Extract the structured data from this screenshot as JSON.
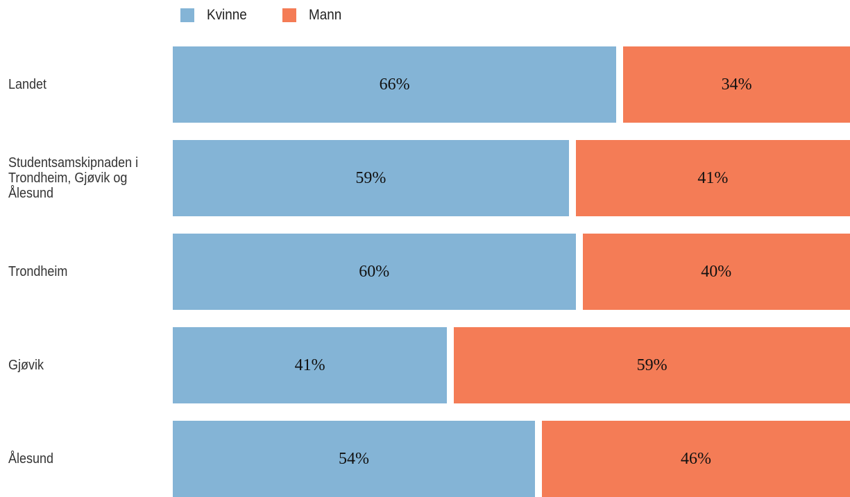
{
  "chart_data": {
    "type": "stacked_barh",
    "categories": [
      "Landet",
      "Studentsamskipnaden i Trondheim, Gjøvik og Ålesund",
      "Trondheim",
      "Gjøvik",
      "Ålesund"
    ],
    "series": [
      {
        "name": "Kvinne",
        "color": "#84b4d6",
        "values": [
          66,
          59,
          60,
          41,
          54
        ],
        "value_labels": [
          "66%",
          "59%",
          "60%",
          "41%",
          "54%"
        ]
      },
      {
        "name": "Mann",
        "color": "#f47c56",
        "values": [
          34,
          41,
          40,
          59,
          46
        ],
        "value_labels": [
          "34%",
          "41%",
          "40%",
          "59%",
          "46%"
        ]
      }
    ],
    "xlim": [
      0,
      100
    ],
    "legend": "top"
  }
}
